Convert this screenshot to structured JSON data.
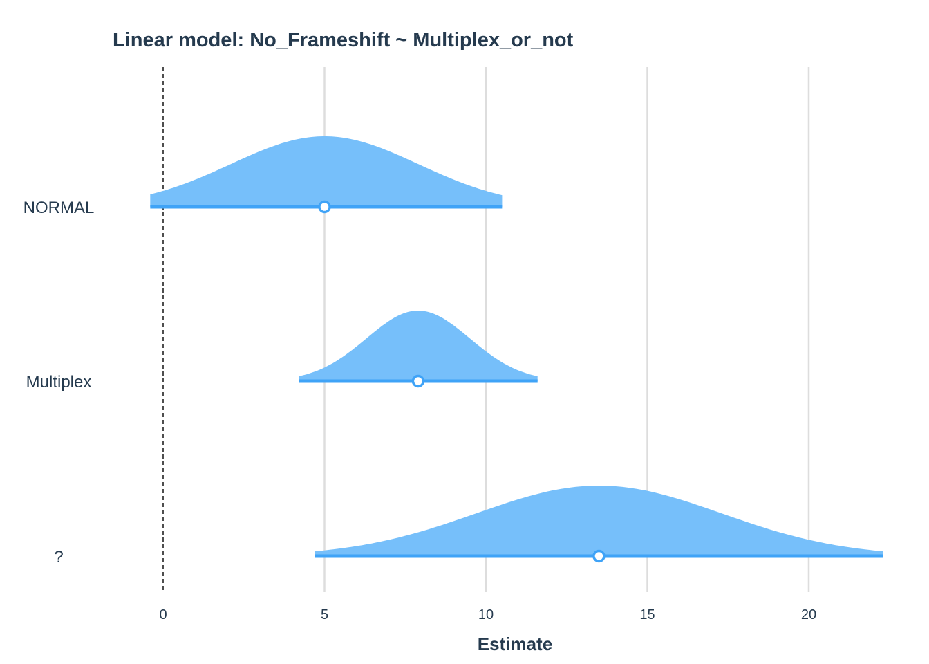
{
  "chart_data": {
    "type": "interval",
    "title": "Linear model: No_Frameshift ~ Multiplex_or_not",
    "xlabel": "Estimate",
    "ylabel": "",
    "xlim": [
      -1.5,
      22.4
    ],
    "xticks": [
      "0",
      "5",
      "10",
      "15",
      "20"
    ],
    "xtick_values": [
      0,
      5,
      10,
      15,
      20
    ],
    "reference_line": 0,
    "grid": "vertical",
    "categories": [
      "NORMAL",
      "Multiplex",
      "?"
    ],
    "estimates": [
      5.0,
      7.9,
      13.5
    ],
    "intervals": [
      [
        -0.4,
        10.5
      ],
      [
        4.2,
        11.6
      ],
      [
        4.7,
        22.3
      ]
    ],
    "density_sd": [
      2.9,
      1.6,
      3.8
    ],
    "colors": {
      "fill": "#76bffa",
      "line": "#3fa3f7",
      "grid": "#dddddd",
      "text": "#253a4e"
    }
  }
}
